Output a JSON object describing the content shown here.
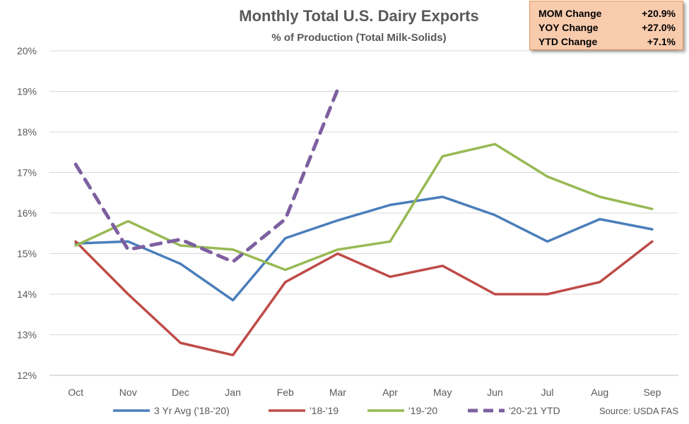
{
  "stats_box": {
    "items": [
      {
        "label": "MOM Change",
        "value": "+20.9%"
      },
      {
        "label": "YOY Change",
        "value": "+27.0%"
      },
      {
        "label": "YTD Change",
        "value": "+7.1%"
      }
    ]
  },
  "source": "Source: USDA FAS",
  "chart_data": {
    "type": "line",
    "title": "Monthly Total U.S. Dairy Exports",
    "subtitle": "% of Production (Total Milk-Solids)",
    "categories": [
      "Oct",
      "Nov",
      "Dec",
      "Jan",
      "Feb",
      "Mar",
      "Apr",
      "May",
      "Jun",
      "Jul",
      "Aug",
      "Sep"
    ],
    "ylim": [
      12,
      20
    ],
    "y_ticks": [
      12,
      13,
      14,
      15,
      16,
      17,
      18,
      19,
      20
    ],
    "y_tick_labels": [
      "12%",
      "13%",
      "14%",
      "15%",
      "16%",
      "17%",
      "18%",
      "19%",
      "20%"
    ],
    "grid": true,
    "legend_position": "bottom",
    "series": [
      {
        "name": "3 Yr Avg ('18-'20)",
        "color": "#4a7ebb",
        "dashed": false,
        "values": [
          15.25,
          15.3,
          14.75,
          13.85,
          15.38,
          15.82,
          16.2,
          16.4,
          15.95,
          15.3,
          15.85,
          15.6
        ]
      },
      {
        "name": "'18-'19",
        "color": "#be4b48",
        "dashed": false,
        "values": [
          15.3,
          14.0,
          12.8,
          12.5,
          14.3,
          15.0,
          14.43,
          14.7,
          14.0,
          14.0,
          14.3,
          15.3
        ]
      },
      {
        "name": "'19-'20",
        "color": "#98b954",
        "dashed": false,
        "values": [
          15.2,
          15.8,
          15.2,
          15.1,
          14.6,
          15.1,
          15.3,
          17.4,
          17.7,
          16.9,
          16.4,
          16.1
        ]
      },
      {
        "name": "'20-'21 YTD",
        "color": "#7d60a0",
        "dashed": true,
        "values": [
          17.2,
          15.1,
          15.35,
          14.8,
          15.85,
          19.05,
          null,
          null,
          null,
          null,
          null,
          null
        ]
      }
    ]
  }
}
